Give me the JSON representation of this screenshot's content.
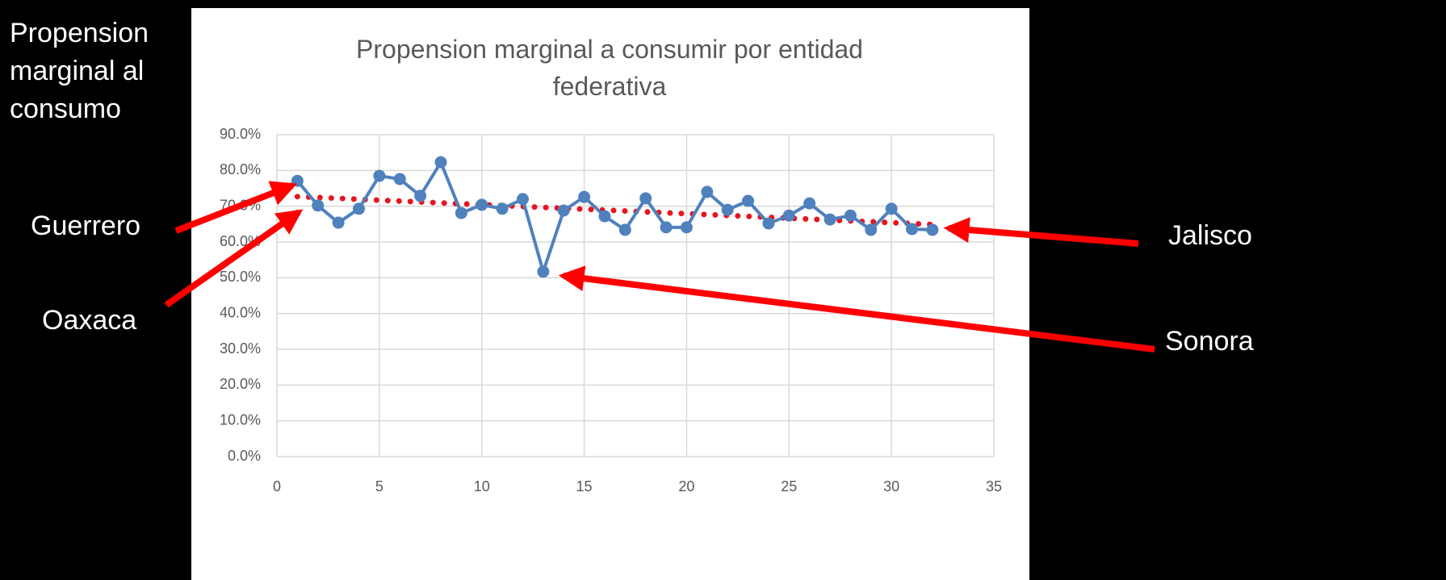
{
  "chart_data": {
    "type": "line",
    "title": "Propension marginal a consumir por entidad federativa",
    "annotations": [
      "Propension marginal al consumo",
      "Guerrero",
      "Oaxaca",
      "Jalisco",
      "Sonora"
    ],
    "x": [
      1,
      2,
      3,
      4,
      5,
      6,
      7,
      8,
      9,
      10,
      11,
      12,
      13,
      14,
      15,
      16,
      17,
      18,
      19,
      20,
      21,
      22,
      23,
      24,
      25,
      26,
      27,
      28,
      29,
      30,
      31,
      32
    ],
    "series": [
      {
        "color": "#4f81bd",
        "values": [
          77.1,
          70.2,
          65.4,
          69.3,
          78.5,
          77.6,
          72.9,
          82.3,
          68.1,
          70.4,
          69.3,
          72.0,
          51.7,
          68.8,
          72.6,
          67.2,
          63.4,
          72.2,
          64.1,
          64.1,
          74.0,
          69.0,
          71.5,
          65.2,
          67.4,
          70.8,
          66.3,
          67.4,
          63.4,
          69.3,
          63.6,
          63.4
        ]
      }
    ],
    "trendline": {
      "color": "#e8141e",
      "x": [
        1,
        32
      ],
      "values": [
        72.7,
        64.9
      ]
    },
    "xlim": [
      0,
      35
    ],
    "xticks": [
      0,
      5,
      10,
      15,
      20,
      25,
      30,
      35
    ],
    "ylim": [
      0,
      90
    ],
    "yticks": [
      {
        "value": 0,
        "label": "0.0%"
      },
      {
        "value": 10,
        "label": "10.0%"
      },
      {
        "value": 20,
        "label": "20.0%"
      },
      {
        "value": 30,
        "label": "30.0%"
      },
      {
        "value": 40,
        "label": "40.0%"
      },
      {
        "value": 50,
        "label": "50.0%"
      },
      {
        "value": 60,
        "label": "60.0%"
      },
      {
        "value": 70,
        "label": "70.0%"
      },
      {
        "value": 80,
        "label": "80.0%"
      },
      {
        "value": 90,
        "label": "90.0%"
      }
    ],
    "grid": true
  }
}
